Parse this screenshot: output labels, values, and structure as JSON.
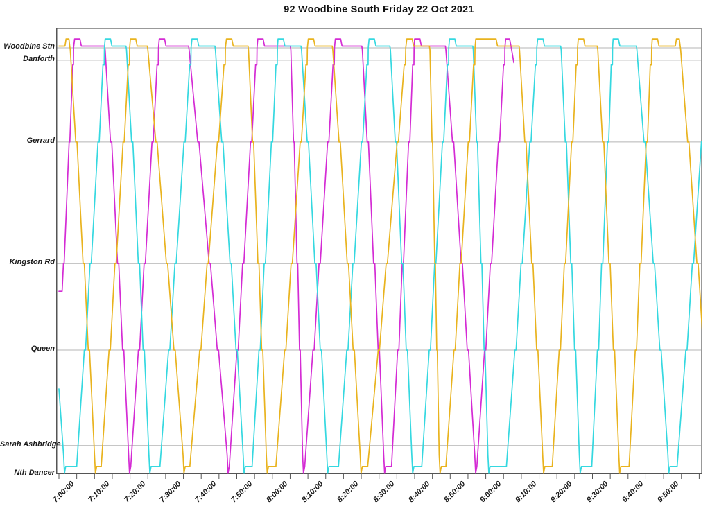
{
  "title": "92 Woodbine South Friday 22 Oct 2021",
  "chart_data": {
    "type": "line",
    "title": "92 Woodbine South Friday 22 Oct 2021",
    "subtitle": "",
    "xlabel": "",
    "ylabel": "",
    "legend": "none",
    "grid": "horizontal-only",
    "x_axis": {
      "start": "7:00:00",
      "end": "10:00:00",
      "tick_interval_minutes": 5,
      "label_interval_minutes": 10,
      "labels": [
        "7:00:00",
        "7:10:00",
        "7:20:00",
        "7:30:00",
        "7:40:00",
        "7:50:00",
        "8:00:00",
        "8:10:00",
        "8:20:00",
        "8:30:00",
        "8:40:00",
        "8:50:00",
        "9:00:00",
        "9:10:00",
        "9:20:00",
        "9:30:00",
        "9:40:00",
        "9:50:00"
      ]
    },
    "y_axis": {
      "stations": [
        {
          "name": "Woodbine Stn",
          "pos": 0.0
        },
        {
          "name": "Danforth",
          "pos": 0.029
        },
        {
          "name": "Gerrard",
          "pos": 0.221
        },
        {
          "name": "Kingston Rd",
          "pos": 0.506
        },
        {
          "name": "Queen",
          "pos": 0.709
        },
        {
          "name": "Sarah Ashbridge",
          "pos": 0.933
        },
        {
          "name": "Nth Dancer",
          "pos": 1.0
        }
      ]
    },
    "time_origin": "7:00:00",
    "series": [
      {
        "name": "vehicle-magenta",
        "color": "#d42bd4",
        "start": {
          "t": 0,
          "f": 0.571,
          "hold": 0.9
        },
        "events": [
          {
            "at": "top",
            "a": 4.6,
            "d": 13.0
          },
          {
            "at": "bot",
            "a": 19.6,
            "d": 21.2
          },
          {
            "at": "top",
            "a": 28.4,
            "d": 36.6
          },
          {
            "at": "bot",
            "a": 47.3,
            "d": 49.0
          },
          {
            "at": "top",
            "a": 56.1,
            "d": 65.2
          },
          {
            "at": "bot",
            "a": 68.5,
            "d": 70.2
          },
          {
            "at": "top",
            "a": 77.9,
            "d": 85.3
          },
          {
            "at": "bot",
            "a": 91.3,
            "d": 93.5
          },
          {
            "at": "top",
            "a": 100.2,
            "d": 108.8
          },
          {
            "at": "bot",
            "a": 116.9,
            "d": 118.4
          },
          {
            "at": "top",
            "a": 125.8,
            "d": null
          }
        ],
        "end": {
          "t": 127.9,
          "f": 0.035
        }
      },
      {
        "name": "vehicle-cyan",
        "color": "#35d8e0",
        "start": {
          "t": 0,
          "f": 0.8
        },
        "events": [
          {
            "at": "bot",
            "a": 1.3,
            "d": 5.0
          },
          {
            "at": "top",
            "a": 13.2,
            "d": 19.0
          },
          {
            "at": "bot",
            "a": 25.3,
            "d": 28.4
          },
          {
            "at": "top",
            "a": 37.6,
            "d": 44.0
          },
          {
            "at": "bot",
            "a": 51.8,
            "d": 54.3
          },
          {
            "at": "top",
            "a": 61.8,
            "d": 68.2
          },
          {
            "at": "bot",
            "a": 75.3,
            "d": 78.6
          },
          {
            "at": "top",
            "a": 87.4,
            "d": 93.2
          },
          {
            "at": "bot",
            "a": 99.2,
            "d": 102.0
          },
          {
            "at": "top",
            "a": 110.0,
            "d": 116.5
          },
          {
            "at": "bot",
            "a": 120.6,
            "d": 125.8
          },
          {
            "at": "top",
            "a": 134.8,
            "d": 141.2
          },
          {
            "at": "bot",
            "a": 146.3,
            "d": 149.8
          },
          {
            "at": "top",
            "a": 156.0,
            "d": 162.5
          },
          {
            "at": "bot",
            "a": 171.2,
            "d": 173.8
          }
        ],
        "endLeg": {
          "t": 182.6,
          "f": 0.0
        }
      },
      {
        "name": "vehicle-orange",
        "color": "#e9b31e",
        "start": {
          "t": 0,
          "f": -0.004
        },
        "events": [
          {
            "at": "top",
            "a": null,
            "d": 3.2,
            "spike": true
          },
          {
            "at": "bot",
            "a": 10.0,
            "d": 11.9
          },
          {
            "at": "top",
            "a": 20.3,
            "d": 25.0
          },
          {
            "at": "bot",
            "a": 34.9,
            "d": 36.8
          },
          {
            "at": "top",
            "a": 47.3,
            "d": 53.3
          },
          {
            "at": "bot",
            "a": 58.3,
            "d": 61.0
          },
          {
            "at": "top",
            "a": 70.3,
            "d": 77.0
          },
          {
            "at": "bot",
            "a": 84.7,
            "d": 86.8
          },
          {
            "at": "top",
            "a": 98.0,
            "d": 104.3
          },
          {
            "at": "bot",
            "a": 106.9,
            "d": 108.8
          },
          {
            "at": "top",
            "a": 117.4,
            "d": 129.5,
            "long": true
          },
          {
            "at": "bot",
            "a": 136.0,
            "d": 138.7
          },
          {
            "at": "top",
            "a": 146.2,
            "d": 151.5
          },
          {
            "at": "bot",
            "a": 157.4,
            "d": 160.3
          },
          {
            "at": "top",
            "a": 167.0,
            "d": 174.8,
            "spike": true
          }
        ],
        "endLeg": {
          "t": 183.5,
          "f": 0.96
        }
      }
    ],
    "colors": {
      "grid": "#b4b4b4",
      "frame_light": "#999999",
      "axis_dark": "#555555",
      "text": "#1a1a1a"
    }
  }
}
